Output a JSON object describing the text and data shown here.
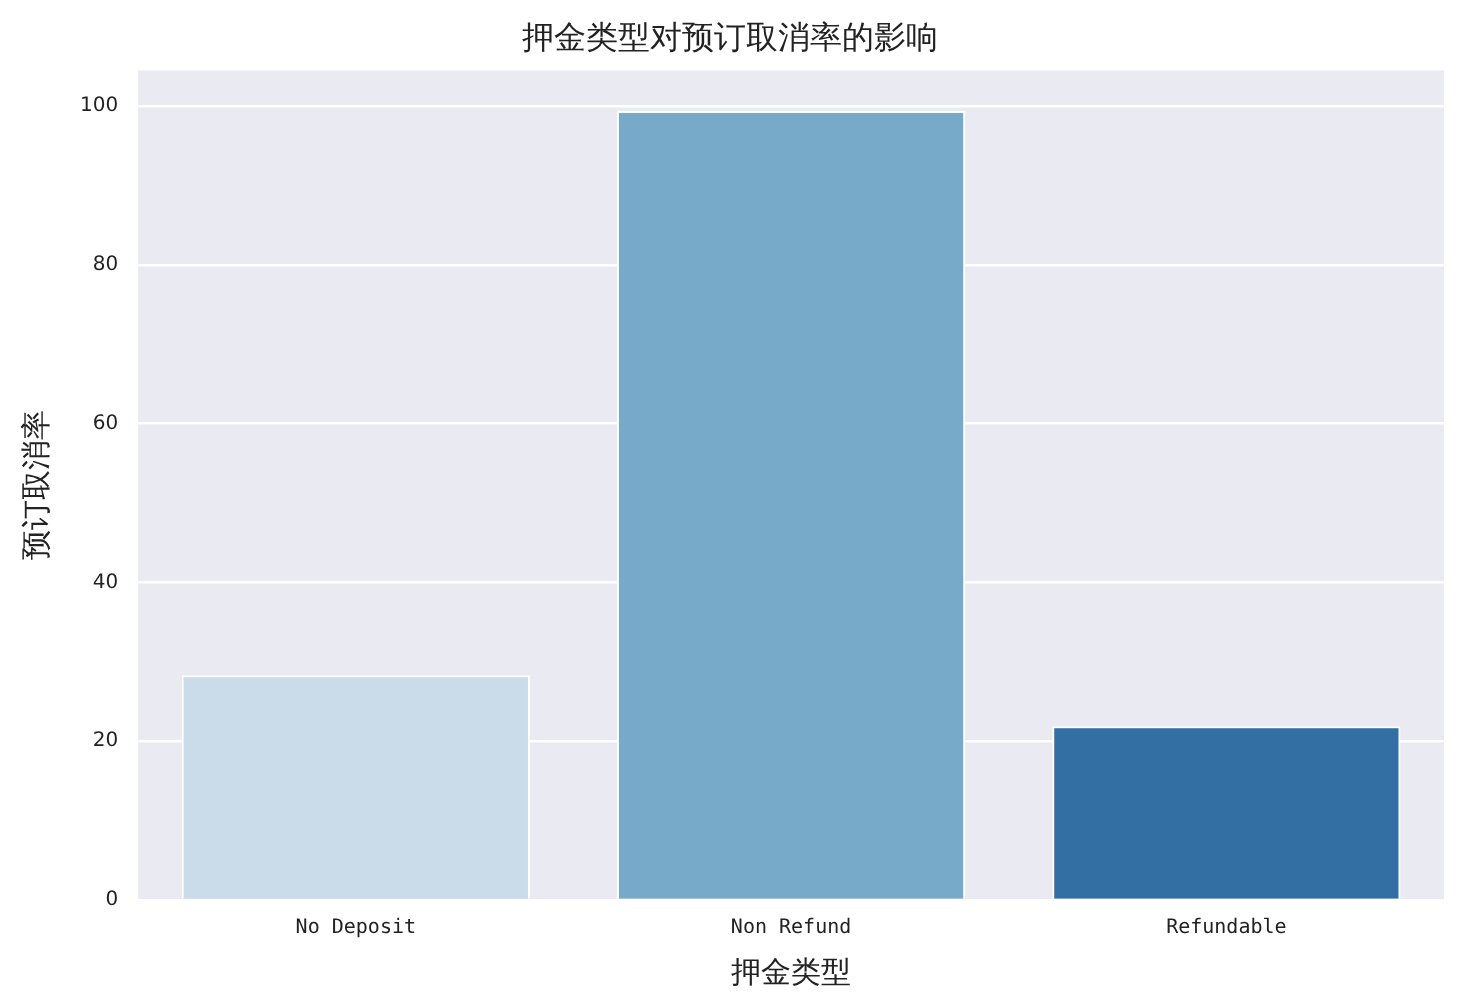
{
  "chart_data": {
    "type": "bar",
    "title": "押金类型对预订取消率的影响",
    "xlabel": "押金类型",
    "ylabel": "预订取消率",
    "categories": [
      "No Deposit",
      "Non Refund",
      "Refundable"
    ],
    "values": [
      28.3,
      99.4,
      21.9
    ],
    "colors": [
      "#cadbea",
      "#77a9c9",
      "#336fa3"
    ],
    "ylim": [
      0,
      104.5
    ],
    "yticks": [
      0,
      20,
      40,
      60,
      80,
      100
    ],
    "grid": "y"
  }
}
